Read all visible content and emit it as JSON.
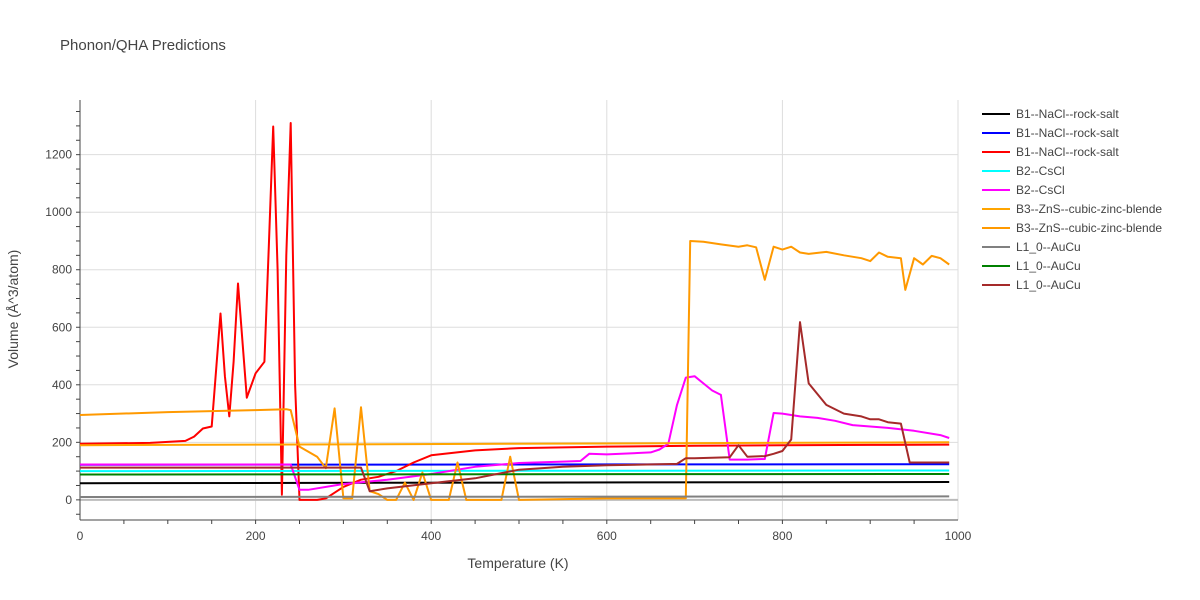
{
  "chart_data": {
    "type": "line",
    "title": "Phonon/QHA Predictions",
    "xlabel": "Temperature (K)",
    "ylabel": "Volume (Å^3/atom)",
    "xlim": [
      0,
      1000
    ],
    "ylim": [
      -70,
      1390
    ],
    "x_ticks": [
      0,
      200,
      400,
      600,
      800,
      1000
    ],
    "y_ticks": [
      0,
      200,
      400,
      600,
      800,
      1000,
      1200
    ],
    "grid": true,
    "legend_position": "right",
    "series": [
      {
        "name": "B1--NaCl--rock-salt",
        "color": "#000000",
        "x": [
          0,
          990
        ],
        "y": [
          58,
          62
        ]
      },
      {
        "name": "B1--NaCl--rock-salt",
        "color": "#0000ff",
        "x": [
          0,
          990
        ],
        "y": [
          122,
          124
        ]
      },
      {
        "name": "B1--NaCl--rock-salt",
        "color": "#ff0000",
        "x": [
          0,
          80,
          120,
          130,
          140,
          150,
          160,
          165,
          170,
          175,
          180,
          190,
          200,
          210,
          215,
          220,
          225,
          230,
          235,
          240,
          245,
          250,
          270,
          280,
          300,
          320,
          340,
          360,
          380,
          400,
          450,
          500,
          600,
          700,
          800,
          900,
          990
        ],
        "y": [
          195,
          198,
          205,
          220,
          248,
          255,
          648,
          430,
          290,
          480,
          752,
          355,
          440,
          480,
          880,
          1298,
          800,
          18,
          850,
          1310,
          400,
          0,
          0,
          5,
          45,
          70,
          80,
          100,
          130,
          155,
          172,
          180,
          185,
          188,
          190,
          191,
          192
        ]
      },
      {
        "name": "B2--CsCl",
        "color": "#00ffff",
        "x": [
          0,
          990
        ],
        "y": [
          100,
          102
        ]
      },
      {
        "name": "B2--CsCl",
        "color": "#ff00ff",
        "x": [
          0,
          240,
          250,
          260,
          300,
          350,
          400,
          450,
          500,
          550,
          570,
          580,
          600,
          650,
          660,
          670,
          680,
          690,
          700,
          710,
          720,
          730,
          740,
          750,
          760,
          780,
          790,
          800,
          820,
          840,
          860,
          880,
          900,
          920,
          950,
          980,
          990
        ],
        "y": [
          123,
          123,
          35,
          35,
          55,
          70,
          90,
          115,
          128,
          133,
          135,
          160,
          158,
          165,
          175,
          195,
          330,
          425,
          430,
          405,
          380,
          365,
          140,
          140,
          140,
          142,
          302,
          300,
          290,
          285,
          275,
          260,
          255,
          250,
          240,
          225,
          215
        ]
      },
      {
        "name": "B3--ZnS--cubic-zinc-blende",
        "color": "#ffa500",
        "x": [
          0,
          990
        ],
        "y": [
          190,
          200
        ]
      },
      {
        "name": "B3--ZnS--cubic-zinc-blende",
        "color": "#ff9900",
        "x": [
          0,
          100,
          200,
          235,
          240,
          250,
          270,
          280,
          290,
          300,
          310,
          320,
          330,
          340,
          350,
          360,
          370,
          380,
          390,
          400,
          410,
          420,
          430,
          440,
          470,
          480,
          490,
          500,
          600,
          690,
          695,
          710,
          730,
          750,
          760,
          770,
          780,
          790,
          800,
          810,
          820,
          830,
          850,
          870,
          890,
          900,
          910,
          920,
          935,
          940,
          950,
          960,
          970,
          980,
          990
        ],
        "y": [
          295,
          305,
          312,
          315,
          312,
          185,
          150,
          110,
          318,
          5,
          5,
          322,
          30,
          20,
          0,
          0,
          60,
          0,
          95,
          0,
          0,
          0,
          130,
          0,
          0,
          0,
          150,
          0,
          5,
          5,
          900,
          897,
          888,
          880,
          885,
          878,
          765,
          880,
          870,
          880,
          860,
          855,
          862,
          850,
          840,
          830,
          860,
          845,
          840,
          730,
          840,
          818,
          848,
          840,
          818
        ]
      },
      {
        "name": "L1_0--AuCu",
        "color": "#808080",
        "x": [
          0,
          990
        ],
        "y": [
          10,
          12
        ]
      },
      {
        "name": "L1_0--AuCu",
        "color": "#008000",
        "x": [
          0,
          990
        ],
        "y": [
          88,
          90
        ]
      },
      {
        "name": "L1_0--AuCu",
        "color": "#a52a2a",
        "x": [
          0,
          320,
          330,
          350,
          400,
          450,
          500,
          550,
          600,
          680,
          690,
          700,
          740,
          750,
          760,
          780,
          790,
          800,
          810,
          820,
          830,
          850,
          870,
          890,
          900,
          910,
          920,
          935,
          945,
          990
        ],
        "y": [
          112,
          112,
          30,
          40,
          58,
          75,
          105,
          115,
          120,
          125,
          145,
          145,
          148,
          190,
          150,
          152,
          160,
          170,
          210,
          618,
          405,
          330,
          300,
          290,
          280,
          280,
          270,
          265,
          130,
          130
        ]
      }
    ]
  }
}
